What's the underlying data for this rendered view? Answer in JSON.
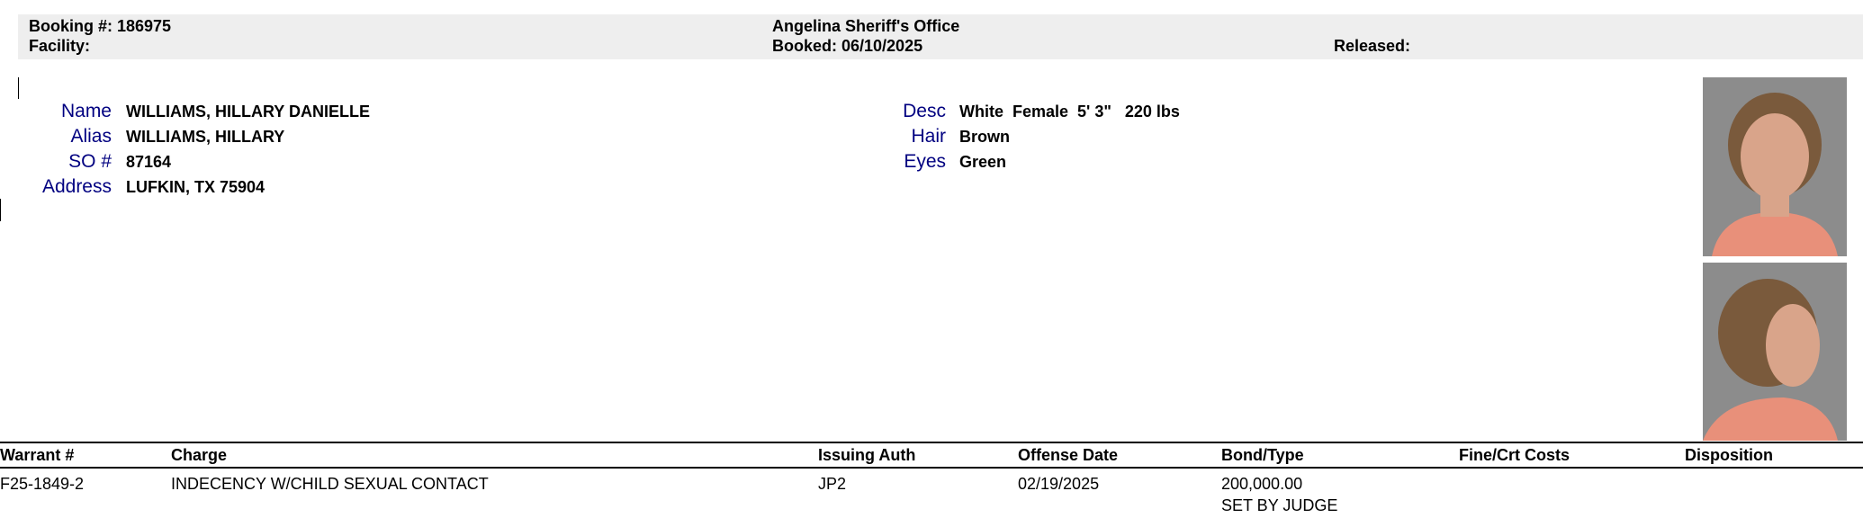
{
  "header": {
    "booking": "Booking #: 186975",
    "facility": "Facility:",
    "agency": "Angelina Sheriff's Office",
    "booked": "Booked: 06/10/2025",
    "released": "Released:"
  },
  "person": {
    "name_label": "Name",
    "name": "WILLIAMS, HILLARY DANIELLE",
    "alias_label": "Alias",
    "alias": "WILLIAMS, HILLARY",
    "so_label": "SO #",
    "so": "87164",
    "address_label": "Address",
    "address": "LUFKIN, TX 75904",
    "desc_label": "Desc",
    "desc": "White  Female  5' 3\"   220 lbs",
    "hair_label": "Hair",
    "hair": "Brown",
    "eyes_label": "Eyes",
    "eyes": "Green"
  },
  "table": {
    "columns": [
      "Warrant #",
      "Charge",
      "Issuing Auth",
      "Offense Date",
      "Bond/Type",
      "Fine/Crt Costs",
      "Disposition"
    ],
    "rows": [
      {
        "warrant": "F25-1849-2",
        "charge": "INDECENCY W/CHILD SEXUAL CONTACT",
        "auth": "JP2",
        "offense_date": "02/19/2025",
        "bond": "200,000.00",
        "bond_type": "SET BY JUDGE",
        "fine": "",
        "disposition": ""
      }
    ]
  },
  "colors": {
    "label": "#000080",
    "band": "#eeeeee"
  }
}
